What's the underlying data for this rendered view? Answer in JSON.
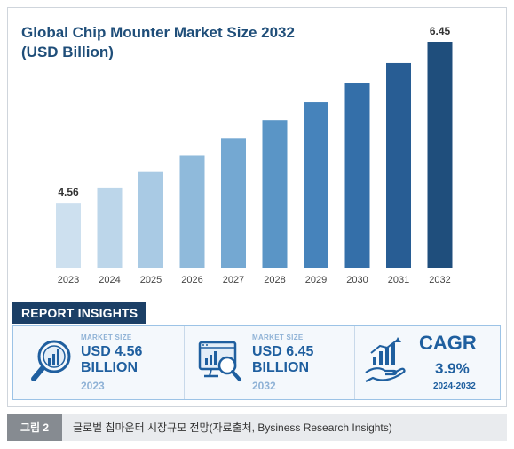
{
  "chart_data": {
    "type": "bar",
    "title": "Global Chip Mounter Market Size 2032 (USD Billion)",
    "categories": [
      "2023",
      "2024",
      "2025",
      "2026",
      "2027",
      "2028",
      "2029",
      "2030",
      "2031",
      "2032"
    ],
    "values": [
      4.56,
      4.74,
      4.93,
      5.12,
      5.32,
      5.53,
      5.74,
      5.97,
      6.2,
      6.45
    ],
    "data_labels": {
      "2023": "4.56",
      "2032": "6.45"
    },
    "xlabel": "",
    "ylabel": "",
    "ylim": [
      3.8,
      6.45
    ],
    "grid": false,
    "legend": "none",
    "colors": [
      "#cde0ef",
      "#bcd6ea",
      "#a9cae4",
      "#8fbadb",
      "#74a8d2",
      "#5a95c6",
      "#4683bb",
      "#346fa9",
      "#285d94",
      "#1f4e7c"
    ]
  },
  "insights": {
    "header": "REPORT INSIGHTS",
    "panel1": {
      "label": "MARKET SIZE",
      "value_line1": "USD 4.56",
      "value_line2": "BILLION",
      "year": "2023",
      "icon": "magnifier-chart-icon"
    },
    "panel2": {
      "label": "MARKET SIZE",
      "value_line1": "USD 6.45",
      "value_line2": "BILLION",
      "year": "2032",
      "icon": "monitor-magnifier-icon"
    },
    "panel3": {
      "title": "CAGR",
      "value": "3.9%",
      "range": "2024-2032",
      "icon": "hand-growth-chart-icon"
    }
  },
  "caption": {
    "tag": "그림 2",
    "text": "글로벌 칩마운터 시장규모 전망(자료출처, Bysiness Research Insights)"
  }
}
